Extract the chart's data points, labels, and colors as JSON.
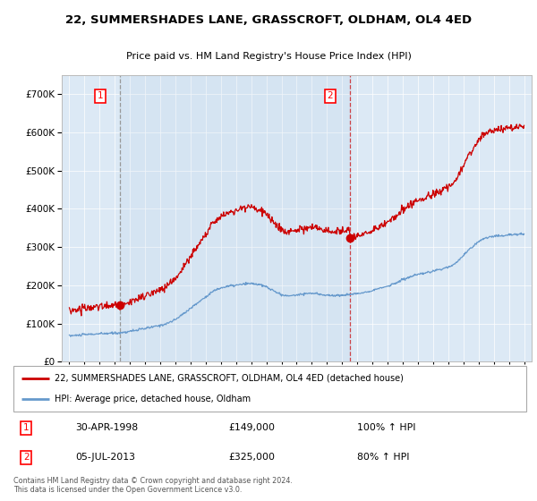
{
  "title": "22, SUMMERSHADES LANE, GRASSCROFT, OLDHAM, OL4 4ED",
  "subtitle": "Price paid vs. HM Land Registry's House Price Index (HPI)",
  "legend_line1": "22, SUMMERSHADES LANE, GRASSCROFT, OLDHAM, OL4 4ED (detached house)",
  "legend_line2": "HPI: Average price, detached house, Oldham",
  "annotation1_label": "1",
  "annotation1_date": "30-APR-1998",
  "annotation1_price": "£149,000",
  "annotation1_hpi": "100% ↑ HPI",
  "annotation2_label": "2",
  "annotation2_date": "05-JUL-2013",
  "annotation2_price": "£325,000",
  "annotation2_hpi": "80% ↑ HPI",
  "footer": "Contains HM Land Registry data © Crown copyright and database right 2024.\nThis data is licensed under the Open Government Licence v3.0.",
  "bg_color": "#dce9f5",
  "red_line_color": "#cc0000",
  "blue_line_color": "#6699cc",
  "marker_color": "#cc0000",
  "sale1_year": 1998.33,
  "sale1_price": 149000,
  "sale2_year": 2013.5,
  "sale2_price": 325000,
  "ylim_max": 750000,
  "xlim_min": 1994.5,
  "xlim_max": 2025.5
}
